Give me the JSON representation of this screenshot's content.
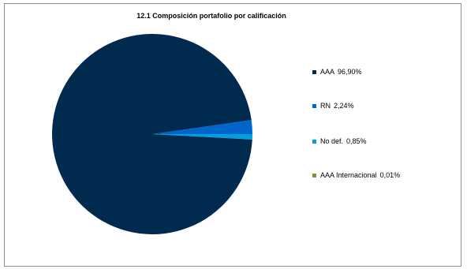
{
  "chart_data": {
    "type": "pie",
    "title": "12.1 Composición portafolio por calificación",
    "legend_position": "right",
    "slices": [
      {
        "label": "AAA",
        "value": 96.9,
        "display": "96,90%",
        "color": "#002A4E"
      },
      {
        "label": "RN",
        "value": 2.24,
        "display": "2,24%",
        "color": "#0066CC"
      },
      {
        "label": "No def.",
        "value": 0.85,
        "display": "0,85%",
        "color": "#00A0E0"
      },
      {
        "label": "AAA Internacional",
        "value": 0.01,
        "display": "0,01%",
        "color": "#8C8C2E"
      }
    ]
  }
}
